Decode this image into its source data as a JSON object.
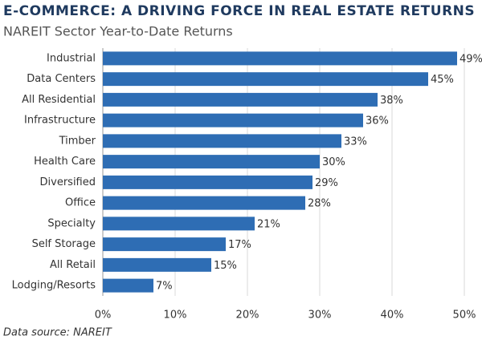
{
  "chart_data": {
    "type": "bar",
    "orientation": "horizontal",
    "title": "E-COMMERCE: A DRIVING FORCE IN REAL ESTATE RETURNS",
    "subtitle": "NAREIT Sector Year-to-Date Returns",
    "source": "Data source: NAREIT",
    "categories": [
      "Industrial",
      "Data Centers",
      "All Residential",
      "Infrastructure",
      "Timber",
      "Health Care",
      "Diversified",
      "Office",
      "Specialty",
      "Self Storage",
      "All Retail",
      "Lodging/Resorts"
    ],
    "values": [
      49,
      45,
      38,
      36,
      33,
      30,
      29,
      28,
      21,
      17,
      15,
      7
    ],
    "value_labels": [
      "49%",
      "45%",
      "38%",
      "36%",
      "33%",
      "30%",
      "29%",
      "28%",
      "21%",
      "17%",
      "15%",
      "7%"
    ],
    "color": "#2e6db4",
    "xlim": [
      0,
      50
    ],
    "xticks": [
      {
        "value": 0,
        "label": "0%"
      },
      {
        "value": 10,
        "label": "10%"
      },
      {
        "value": 20,
        "label": "20%"
      },
      {
        "value": 30,
        "label": "30%"
      },
      {
        "value": 40,
        "label": "40%"
      },
      {
        "value": 50,
        "label": "50%"
      }
    ],
    "grid": true
  }
}
